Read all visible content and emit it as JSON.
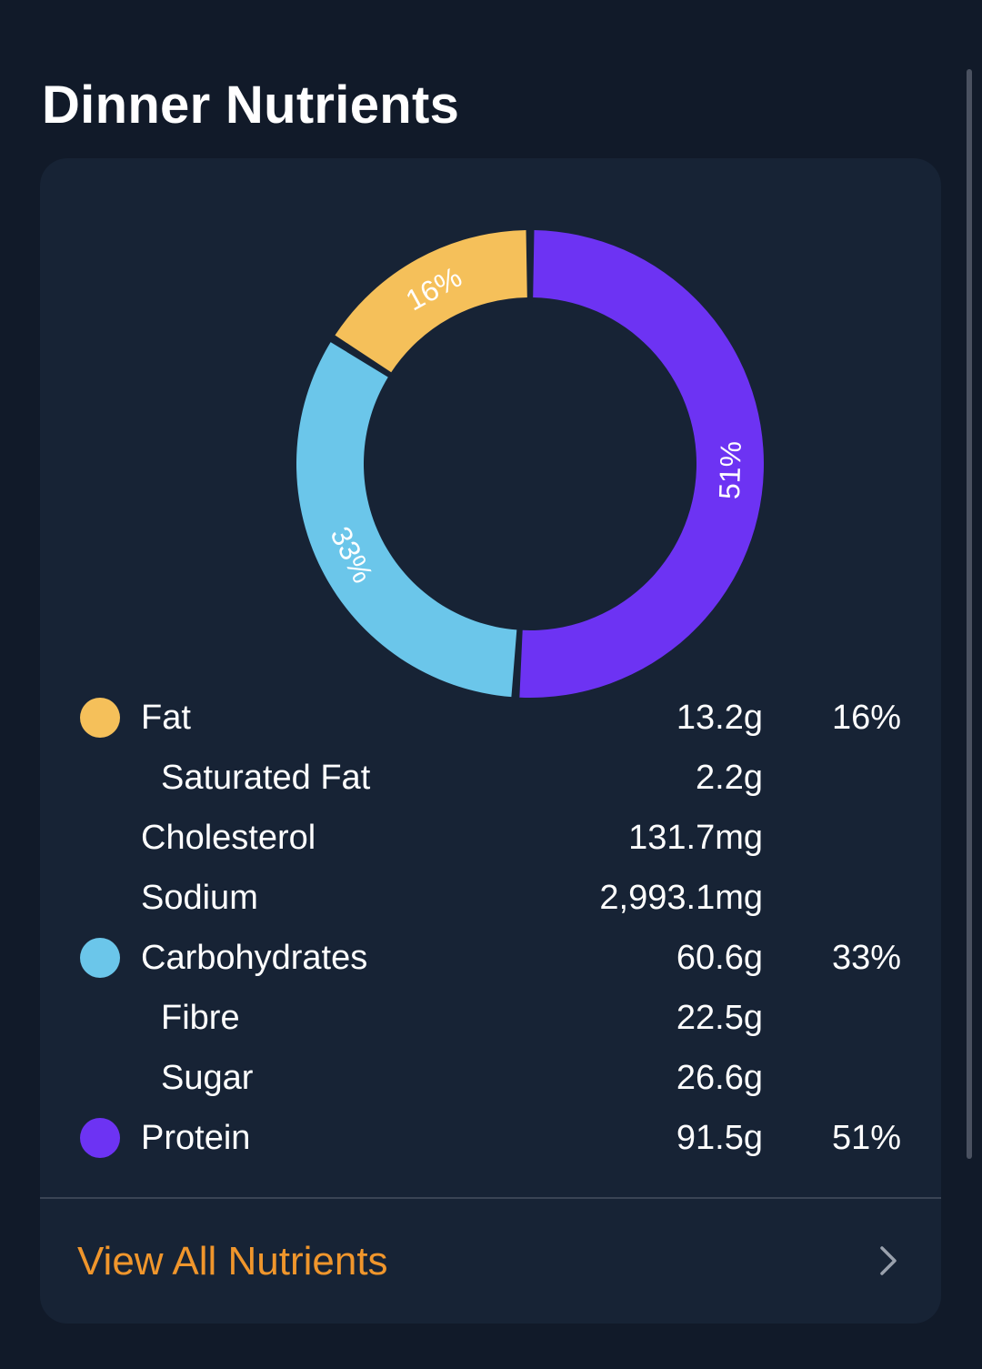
{
  "header": {
    "title": "Dinner Nutrients"
  },
  "colors": {
    "background": "#111a29",
    "card": "#172335",
    "fat": "#f5c05a",
    "carbohydrates": "#6bc6ea",
    "protein": "#6d33f3",
    "accent": "#f0962c"
  },
  "chart_data": {
    "type": "donut",
    "slices": [
      {
        "name": "Fat",
        "value": 16,
        "label": "16%",
        "color": "#f5c05a"
      },
      {
        "name": "Carbohydrates",
        "value": 33,
        "label": "33%",
        "color": "#6bc6ea"
      },
      {
        "name": "Protein",
        "value": 51,
        "label": "51%",
        "color": "#6d33f3"
      }
    ]
  },
  "nutrients": [
    {
      "label": "Fat",
      "amount": "13.2g",
      "percent": "16%",
      "dot": "fat"
    },
    {
      "label": "Saturated Fat",
      "amount": "2.2g",
      "percent": "",
      "sub": true
    },
    {
      "label": "Cholesterol",
      "amount": "131.7mg",
      "percent": ""
    },
    {
      "label": "Sodium",
      "amount": "2,993.1mg",
      "percent": ""
    },
    {
      "label": "Carbohydrates",
      "amount": "60.6g",
      "percent": "33%",
      "dot": "carbohydrates"
    },
    {
      "label": "Fibre",
      "amount": "22.5g",
      "percent": "",
      "sub": true
    },
    {
      "label": "Sugar",
      "amount": "26.6g",
      "percent": "",
      "sub": true
    },
    {
      "label": "Protein",
      "amount": "91.5g",
      "percent": "51%",
      "dot": "protein"
    }
  ],
  "footer": {
    "view_all_label": "View All Nutrients",
    "chevron_icon": "chevron-right-icon"
  }
}
